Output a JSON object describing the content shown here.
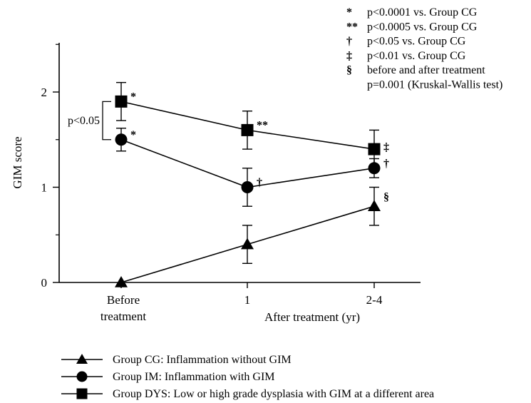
{
  "chart_data": {
    "type": "line",
    "x": [
      "Before treatment",
      "1",
      "2-4"
    ],
    "x_tick_labels": [
      [
        "Before",
        "treatment"
      ],
      [
        "1"
      ],
      [
        "2-4"
      ]
    ],
    "xlabel": "After treatment (yr)",
    "ylabel": "GIM score",
    "ylim": [
      0,
      2.5
    ],
    "yticks": [
      "0",
      "1",
      "2"
    ],
    "grid": false,
    "legend_position": "bottom",
    "series": [
      {
        "name": "Group CG: Inflammation without GIM",
        "marker": "triangle",
        "values": [
          0,
          0.4,
          0.8
        ],
        "errors": [
          0,
          0.2,
          0.2
        ],
        "marks": [
          "",
          "",
          "§"
        ]
      },
      {
        "name": "Group IM: Inflammation with GIM",
        "marker": "circle",
        "values": [
          1.5,
          1.0,
          1.2
        ],
        "errors": [
          0.12,
          0.2,
          0.1
        ],
        "marks": [
          "*",
          "†",
          "†"
        ]
      },
      {
        "name": "Group DYS: Low or high grade dysplasia with GIM at a different area",
        "marker": "square",
        "values": [
          1.9,
          1.6,
          1.4
        ],
        "errors": [
          0.2,
          0.2,
          0.2
        ],
        "marks": [
          "*",
          "**",
          "‡"
        ]
      }
    ],
    "bracket_annotation": "p<0.05",
    "notes": [
      {
        "symbol": "*",
        "text": "p<0.0001 vs. Group CG"
      },
      {
        "symbol": "**",
        "text": "p<0.0005 vs. Group CG"
      },
      {
        "symbol": "†",
        "text": "p<0.05 vs. Group CG"
      },
      {
        "symbol": "‡",
        "text": "p<0.01 vs. Group CG"
      },
      {
        "symbol": "§",
        "text": "before and after treatment"
      },
      {
        "symbol": "",
        "text": "p=0.001 (Kruskal-Wallis test)"
      }
    ]
  }
}
